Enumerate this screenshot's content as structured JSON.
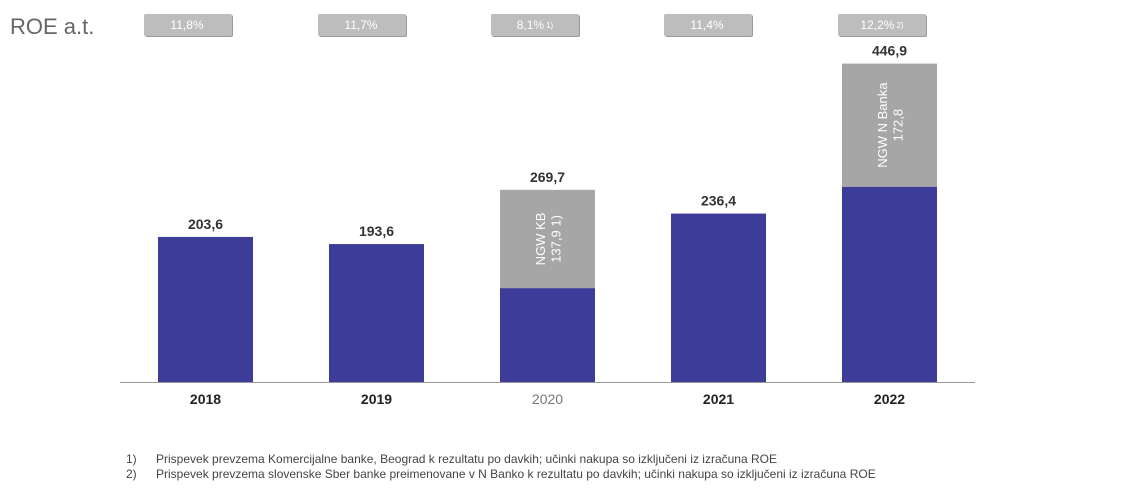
{
  "roe": {
    "label": "ROE a.t.",
    "values": [
      {
        "text": "11,8%",
        "note": ""
      },
      {
        "text": "11,7%",
        "note": ""
      },
      {
        "text": "8,1%",
        "note": "1)"
      },
      {
        "text": "11,4%",
        "note": ""
      },
      {
        "text": "12,2%",
        "note": "2)"
      }
    ]
  },
  "chart_data": {
    "type": "bar",
    "stacked": true,
    "categories": [
      "2018",
      "2019",
      "2020",
      "2021",
      "2022"
    ],
    "series": [
      {
        "values": [
          203.6,
          193.6,
          131.8,
          236.4,
          274.1
        ],
        "color": "#3d3d99"
      },
      {
        "values": [
          0,
          0,
          137.9,
          0,
          172.8
        ],
        "color": "#a6a6a6"
      }
    ],
    "totals": [
      "203,6",
      "193,6",
      "269,7",
      "236,4",
      "446,9"
    ],
    "segment_labels": [
      {
        "category": "2020",
        "line1": "NGW KB",
        "line2": "137,9",
        "note": "1)"
      },
      {
        "category": "2022",
        "line1": "NGW N Banka",
        "line2": "172,8",
        "note": ""
      }
    ],
    "ylim": [
      0,
      480
    ],
    "grid": false
  },
  "footnotes": [
    {
      "num": "1)",
      "text": "Prispevek prevzema Komercijalne banke, Beograd k rezultatu po davkih; učinki nakupa so izključeni iz izračuna ROE"
    },
    {
      "num": "2)",
      "text": "Prispevek prevzema slovenske Sber banke preimenovane v N Banko k rezultatu po davkih; učinki nakupa so izključeni iz izračuna ROE"
    }
  ],
  "colors": {
    "primary": "#3d3d99",
    "acquisition": "#a6a6a6",
    "badge": "#bdbdbd"
  }
}
